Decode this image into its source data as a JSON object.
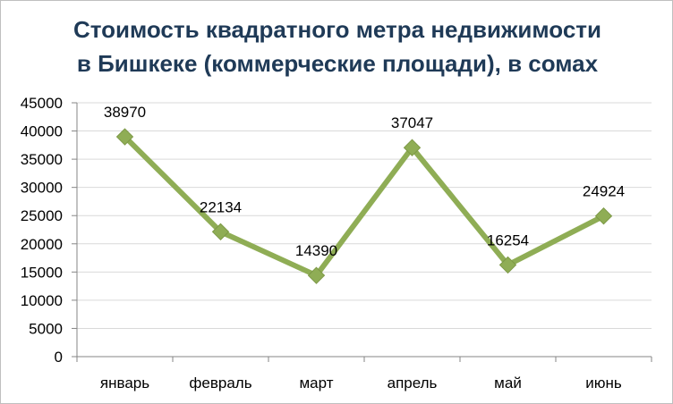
{
  "chart_data": {
    "type": "line",
    "title_lines": [
      "Стоимость квадратного метра недвижимости",
      "в Бишкеке (коммерческие площади), в сомах"
    ],
    "xlabel": "",
    "ylabel": "",
    "categories": [
      "январь",
      "февраль",
      "март",
      "апрель",
      "май",
      "июнь"
    ],
    "series": [
      {
        "values": [
          38970,
          22134,
          14390,
          37047,
          16254,
          24924
        ],
        "color": "#8fad55",
        "marker": "diamond"
      }
    ],
    "data_labels": [
      "38970",
      "22134",
      "14390",
      "37047",
      "16254",
      "24924"
    ],
    "ylim": [
      0,
      45000
    ],
    "yticks": [
      0,
      5000,
      10000,
      15000,
      20000,
      25000,
      30000,
      35000,
      40000,
      45000
    ],
    "ytick_labels": [
      "0",
      "5000",
      "10000",
      "15000",
      "20000",
      "25000",
      "30000",
      "35000",
      "40000",
      "45000"
    ],
    "grid": true,
    "legend": "none"
  },
  "colors": {
    "title": "#1f3a57",
    "line": "#8fad55",
    "gridline": "#d9d9d9",
    "axis": "#868686"
  }
}
